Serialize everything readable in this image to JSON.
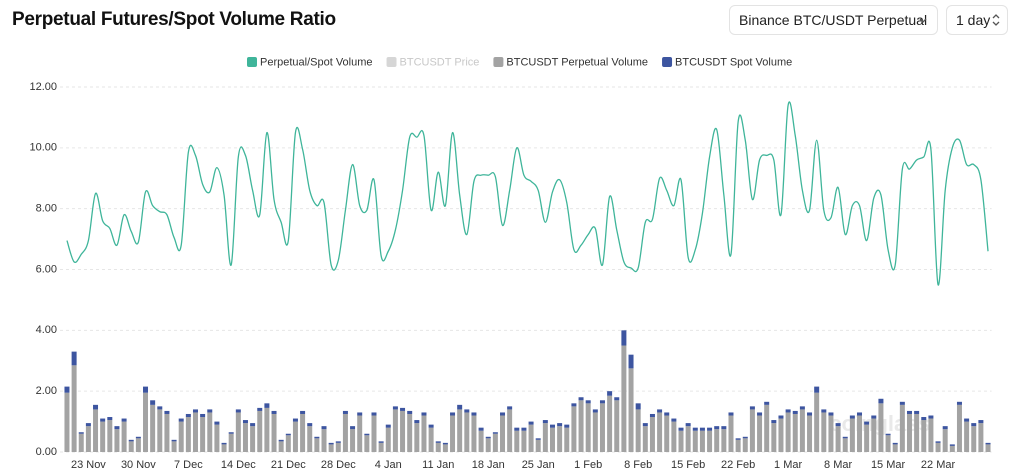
{
  "header": {
    "title": "Perpetual Futures/Spot Volume Ratio",
    "exchange_select": "Binance BTC/USDT Perpetual",
    "interval_select": "1 day"
  },
  "chart_data": {
    "type": "combo",
    "watermark": "coinglass",
    "grid": true,
    "legend": "top",
    "ylim": [
      0,
      12
    ],
    "yticks": [
      {
        "value": 0,
        "label": "0.00"
      },
      {
        "value": 2,
        "label": "2.00"
      },
      {
        "value": 4,
        "label": "4.00"
      },
      {
        "value": 6,
        "label": "6.00"
      },
      {
        "value": 8,
        "label": "8.00"
      },
      {
        "value": 10,
        "label": "10.00"
      },
      {
        "value": 12,
        "label": "12.00"
      }
    ],
    "categories": [
      null,
      null,
      null,
      "23 Nov",
      null,
      null,
      null,
      null,
      null,
      null,
      "30 Nov",
      null,
      null,
      null,
      null,
      null,
      null,
      "7 Dec",
      null,
      null,
      null,
      null,
      null,
      null,
      "14 Dec",
      null,
      null,
      null,
      null,
      null,
      null,
      "21 Dec",
      null,
      null,
      null,
      null,
      null,
      null,
      "28 Dec",
      null,
      null,
      null,
      null,
      null,
      null,
      "4 Jan",
      null,
      null,
      null,
      null,
      null,
      null,
      "11 Jan",
      null,
      null,
      null,
      null,
      null,
      null,
      "18 Jan",
      null,
      null,
      null,
      null,
      null,
      null,
      "25 Jan",
      null,
      null,
      null,
      null,
      null,
      null,
      "1 Feb",
      null,
      null,
      null,
      null,
      null,
      null,
      "8 Feb",
      null,
      null,
      null,
      null,
      null,
      null,
      "15 Feb",
      null,
      null,
      null,
      null,
      null,
      null,
      "22 Feb",
      null,
      null,
      null,
      null,
      null,
      null,
      "1 Mar",
      null,
      null,
      null,
      null,
      null,
      null,
      "8 Mar",
      null,
      null,
      null,
      null,
      null,
      null,
      "15 Mar",
      null,
      null,
      null,
      null,
      null,
      null,
      "22 Mar",
      null,
      null,
      null,
      null,
      null,
      null,
      null
    ],
    "series": [
      {
        "name": "Perpetual/Spot Volume",
        "color": "#3fb59a",
        "type": "line",
        "values": [
          6.95,
          6.25,
          6.5,
          6.95,
          8.5,
          7.6,
          7.35,
          6.8,
          7.8,
          7.25,
          6.9,
          8.55,
          8.1,
          7.9,
          7.8,
          7.05,
          6.8,
          9.85,
          9.75,
          8.8,
          8.55,
          9.35,
          8.45,
          6.15,
          9.7,
          9.75,
          8.6,
          7.8,
          10.5,
          8.3,
          7.55,
          6.95,
          10.5,
          9.95,
          8.6,
          8.1,
          8.2,
          6.15,
          6.3,
          7.95,
          9.45,
          8.1,
          7.95,
          8.95,
          6.45,
          6.6,
          7.3,
          8.6,
          10.35,
          10.35,
          10.4,
          7.95,
          9.2,
          8.1,
          10.5,
          8.45,
          7.15,
          8.9,
          9.1,
          9.1,
          9.05,
          7.45,
          8.6,
          10.0,
          9.1,
          8.9,
          8.6,
          7.55,
          8.55,
          8.95,
          8.2,
          6.65,
          6.8,
          7.15,
          7.35,
          6.15,
          8.4,
          7.3,
          6.25,
          6.05,
          6.05,
          7.55,
          7.65,
          9.0,
          8.6,
          8.1,
          8.95,
          6.4,
          6.65,
          7.85,
          9.7,
          10.6,
          8.45,
          6.5,
          10.85,
          10.25,
          8.3,
          9.6,
          9.75,
          9.6,
          7.8,
          11.4,
          10.4,
          8.6,
          7.95,
          10.25,
          7.95,
          7.7,
          8.7,
          7.15,
          8.1,
          8.1,
          6.95,
          8.35,
          8.45,
          6.65,
          6.15,
          9.3,
          9.3,
          9.6,
          9.7,
          9.95,
          5.5,
          8.6,
          10.0,
          10.25,
          9.45,
          9.45,
          8.95,
          6.6
        ]
      },
      {
        "name": "BTCUSDT Price",
        "color": "#d6d6d6",
        "type": "line",
        "hidden": true
      },
      {
        "name": "BTCUSDT Perpetual Volume",
        "color": "#a3a3a3",
        "type": "bar",
        "values": [
          1.95,
          2.85,
          0.6,
          0.85,
          1.4,
          1.0,
          1.05,
          0.75,
          1.0,
          0.35,
          0.45,
          1.95,
          1.55,
          1.4,
          1.25,
          0.35,
          1.0,
          1.15,
          1.3,
          1.15,
          1.3,
          0.9,
          0.25,
          0.6,
          1.3,
          0.95,
          0.85,
          1.35,
          1.45,
          1.25,
          0.35,
          0.55,
          1.0,
          1.25,
          0.85,
          0.45,
          0.75,
          0.25,
          0.3,
          1.25,
          0.75,
          1.2,
          0.55,
          1.2,
          0.3,
          0.8,
          1.4,
          1.35,
          1.25,
          0.95,
          1.2,
          0.8,
          0.3,
          0.25,
          1.2,
          1.4,
          1.3,
          1.2,
          0.7,
          0.45,
          0.6,
          1.2,
          1.4,
          0.7,
          0.7,
          0.9,
          0.4,
          0.95,
          0.8,
          0.85,
          0.8,
          1.5,
          1.7,
          1.6,
          1.3,
          1.6,
          1.85,
          1.7,
          3.5,
          2.75,
          1.4,
          0.85,
          1.15,
          1.3,
          1.2,
          1.0,
          0.7,
          0.85,
          0.7,
          0.7,
          0.7,
          0.75,
          0.75,
          1.2,
          0.4,
          0.45,
          1.4,
          1.2,
          1.55,
          0.95,
          1.1,
          1.3,
          1.25,
          1.4,
          1.2,
          1.95,
          1.3,
          1.2,
          0.85,
          0.45,
          1.1,
          1.2,
          0.9,
          1.1,
          1.6,
          0.55,
          0.25,
          1.55,
          1.25,
          1.25,
          1.05,
          1.1,
          0.3,
          0.75,
          0.2,
          1.55,
          1.0,
          0.85,
          0.95,
          0.25
        ]
      },
      {
        "name": "BTCUSDT Spot Volume",
        "color": "#3d55a0",
        "type": "bar",
        "values": [
          0.2,
          0.45,
          0.05,
          0.1,
          0.15,
          0.1,
          0.1,
          0.1,
          0.1,
          0.05,
          0.05,
          0.2,
          0.15,
          0.1,
          0.1,
          0.05,
          0.1,
          0.1,
          0.1,
          0.1,
          0.1,
          0.1,
          0.05,
          0.05,
          0.1,
          0.1,
          0.1,
          0.1,
          0.15,
          0.1,
          0.05,
          0.05,
          0.1,
          0.1,
          0.1,
          0.05,
          0.1,
          0.05,
          0.05,
          0.1,
          0.1,
          0.1,
          0.05,
          0.1,
          0.05,
          0.1,
          0.1,
          0.1,
          0.1,
          0.1,
          0.1,
          0.1,
          0.05,
          0.05,
          0.1,
          0.15,
          0.1,
          0.1,
          0.1,
          0.05,
          0.05,
          0.1,
          0.1,
          0.1,
          0.1,
          0.1,
          0.05,
          0.1,
          0.1,
          0.1,
          0.1,
          0.1,
          0.1,
          0.1,
          0.1,
          0.1,
          0.15,
          0.1,
          0.5,
          0.45,
          0.2,
          0.1,
          0.1,
          0.1,
          0.1,
          0.1,
          0.1,
          0.1,
          0.1,
          0.1,
          0.1,
          0.1,
          0.1,
          0.1,
          0.05,
          0.05,
          0.1,
          0.1,
          0.1,
          0.1,
          0.1,
          0.1,
          0.1,
          0.1,
          0.1,
          0.2,
          0.1,
          0.1,
          0.1,
          0.05,
          0.1,
          0.1,
          0.1,
          0.1,
          0.15,
          0.05,
          0.05,
          0.1,
          0.1,
          0.1,
          0.1,
          0.1,
          0.05,
          0.1,
          0.05,
          0.1,
          0.1,
          0.1,
          0.1,
          0.05
        ]
      }
    ]
  }
}
